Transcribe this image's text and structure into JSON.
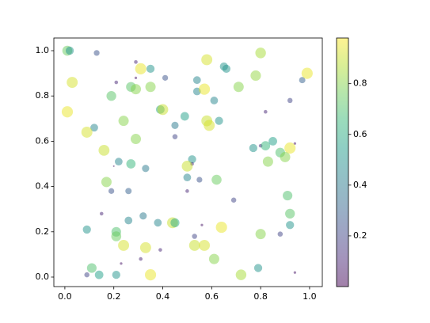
{
  "chart_data": {
    "type": "scatter",
    "colormap": "viridis",
    "alpha": 0.5,
    "x": [
      0.01,
      0.02,
      0.13,
      0.29,
      0.31,
      0.35,
      0.29,
      0.41,
      0.03,
      0.21,
      0.27,
      0.29,
      0.35,
      0.54,
      0.54,
      0.57,
      0.58,
      0.65,
      0.66,
      0.71,
      0.78,
      0.8,
      0.97,
      0.99,
      0.92,
      0.19,
      0.61,
      0.82,
      0.39,
      0.4,
      0.01,
      0.49,
      0.12,
      0.24,
      0.45,
      0.58,
      0.59,
      0.63,
      0.45,
      0.09,
      0.29,
      0.16,
      0.77,
      0.8,
      0.82,
      0.85,
      0.94,
      0.92,
      0.88,
      0.83,
      0.22,
      0.27,
      0.2,
      0.33,
      0.52,
      0.52,
      0.5,
      0.9,
      0.17,
      0.5,
      0.55,
      0.62,
      0.19,
      0.26,
      0.5,
      0.91,
      0.69,
      0.92,
      0.15,
      0.32,
      0.26,
      0.38,
      0.44,
      0.45,
      0.56,
      0.64,
      0.92,
      0.09,
      0.21,
      0.21,
      0.53,
      0.8,
      0.88,
      0.24,
      0.33,
      0.53,
      0.57,
      0.39,
      0.31,
      0.11,
      0.14,
      0.09,
      0.21,
      0.23,
      0.35,
      0.61,
      0.72,
      0.79,
      0.94
    ],
    "y": [
      1.0,
      1.0,
      0.99,
      0.95,
      0.92,
      0.92,
      0.88,
      0.88,
      0.86,
      0.86,
      0.84,
      0.83,
      0.84,
      0.87,
      0.82,
      0.83,
      0.96,
      0.93,
      0.92,
      0.84,
      0.89,
      0.99,
      0.87,
      0.9,
      0.78,
      0.8,
      0.78,
      0.73,
      0.74,
      0.74,
      0.73,
      0.71,
      0.66,
      0.69,
      0.67,
      0.69,
      0.67,
      0.69,
      0.62,
      0.64,
      0.61,
      0.56,
      0.57,
      0.58,
      0.58,
      0.6,
      0.59,
      0.57,
      0.55,
      0.51,
      0.51,
      0.5,
      0.49,
      0.48,
      0.52,
      0.5,
      0.49,
      0.53,
      0.42,
      0.44,
      0.43,
      0.43,
      0.38,
      0.38,
      0.38,
      0.36,
      0.34,
      0.28,
      0.28,
      0.27,
      0.25,
      0.24,
      0.24,
      0.24,
      0.23,
      0.22,
      0.23,
      0.21,
      0.2,
      0.18,
      0.18,
      0.19,
      0.19,
      0.14,
      0.13,
      0.14,
      0.14,
      0.12,
      0.08,
      0.04,
      0.01,
      0.01,
      0.01,
      0.06,
      0.01,
      0.08,
      0.01,
      0.04,
      0.02
    ],
    "values": [
      0.75,
      0.5,
      0.25,
      0.1,
      0.95,
      0.5,
      0.05,
      0.25,
      0.92,
      0.1,
      0.72,
      0.8,
      0.8,
      0.45,
      0.45,
      0.95,
      0.92,
      0.5,
      0.5,
      0.8,
      0.82,
      0.85,
      0.3,
      0.95,
      0.2,
      0.72,
      0.45,
      0.1,
      0.55,
      0.9,
      0.95,
      0.55,
      0.45,
      0.8,
      0.4,
      0.9,
      0.92,
      0.5,
      0.2,
      0.92,
      0.8,
      0.9,
      0.5,
      0.1,
      0.65,
      0.55,
      0.05,
      0.95,
      0.7,
      0.8,
      0.45,
      0.65,
      0.02,
      0.4,
      0.5,
      0.1,
      0.9,
      0.8,
      0.8,
      0.45,
      0.25,
      0.75,
      0.25,
      0.3,
      0.1,
      0.7,
      0.2,
      0.72,
      0.1,
      0.4,
      0.45,
      0.45,
      0.9,
      0.6,
      0.05,
      0.95,
      0.5,
      0.5,
      0.7,
      0.75,
      0.2,
      0.8,
      0.2,
      0.92,
      0.92,
      0.9,
      0.92,
      0.1,
      0.1,
      0.7,
      0.55,
      0.2,
      0.5,
      0.05,
      0.95,
      0.8,
      0.85,
      0.5,
      0.05
    ],
    "xlim": [
      -0.045,
      1.052
    ],
    "ylim": [
      -0.042,
      1.056
    ],
    "clim": [
      0,
      0.98
    ],
    "xticks": [
      {
        "value": 0,
        "label": "0.0"
      },
      0.2,
      0.4,
      0.6,
      0.8,
      {
        "value": 1,
        "label": "1.0"
      }
    ],
    "yticks": [
      {
        "value": 0,
        "label": "0.0"
      },
      0.2,
      0.4,
      0.6,
      0.8,
      {
        "value": 1,
        "label": "1.0"
      }
    ],
    "cticks": [
      0.2,
      0.4,
      0.6,
      0.8
    ]
  }
}
